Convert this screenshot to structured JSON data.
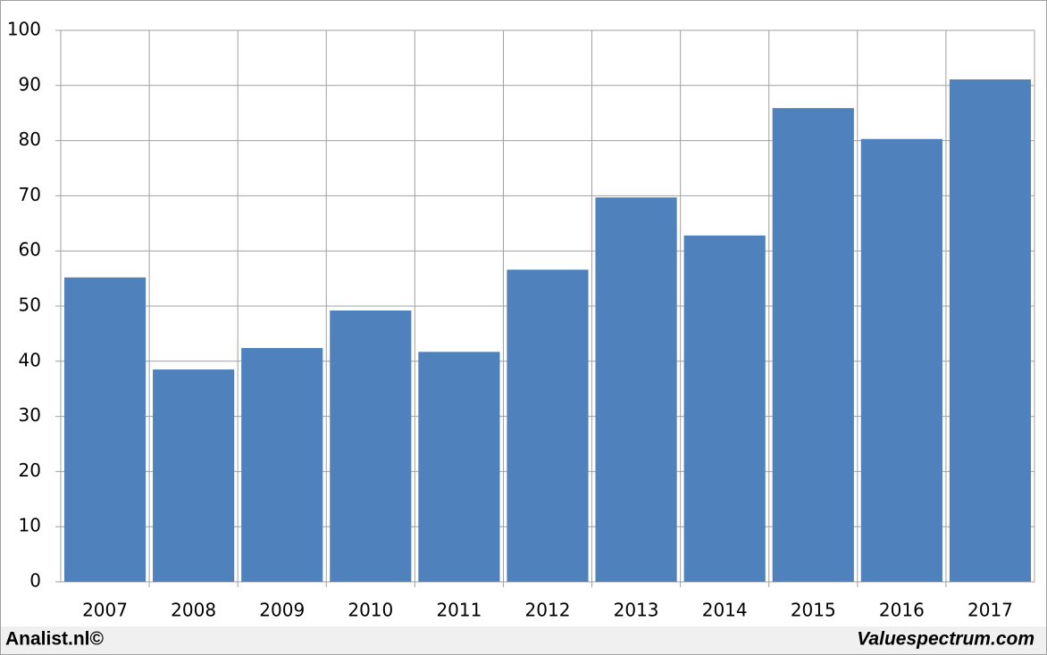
{
  "chart_data": {
    "type": "bar",
    "categories": [
      "2007",
      "2008",
      "2009",
      "2010",
      "2011",
      "2012",
      "2013",
      "2014",
      "2015",
      "2016",
      "2017"
    ],
    "values": [
      55.2,
      38.5,
      42.4,
      49.2,
      41.7,
      56.6,
      69.7,
      62.8,
      85.9,
      80.3,
      91.1
    ],
    "color": "#4f81bd",
    "ylim": [
      0,
      100
    ],
    "yticks": [
      0,
      10,
      20,
      30,
      40,
      50,
      60,
      70,
      80,
      90,
      100
    ],
    "grid": true,
    "source_left": "Analist.nl©",
    "source_right": "Valuespectrum.com"
  }
}
